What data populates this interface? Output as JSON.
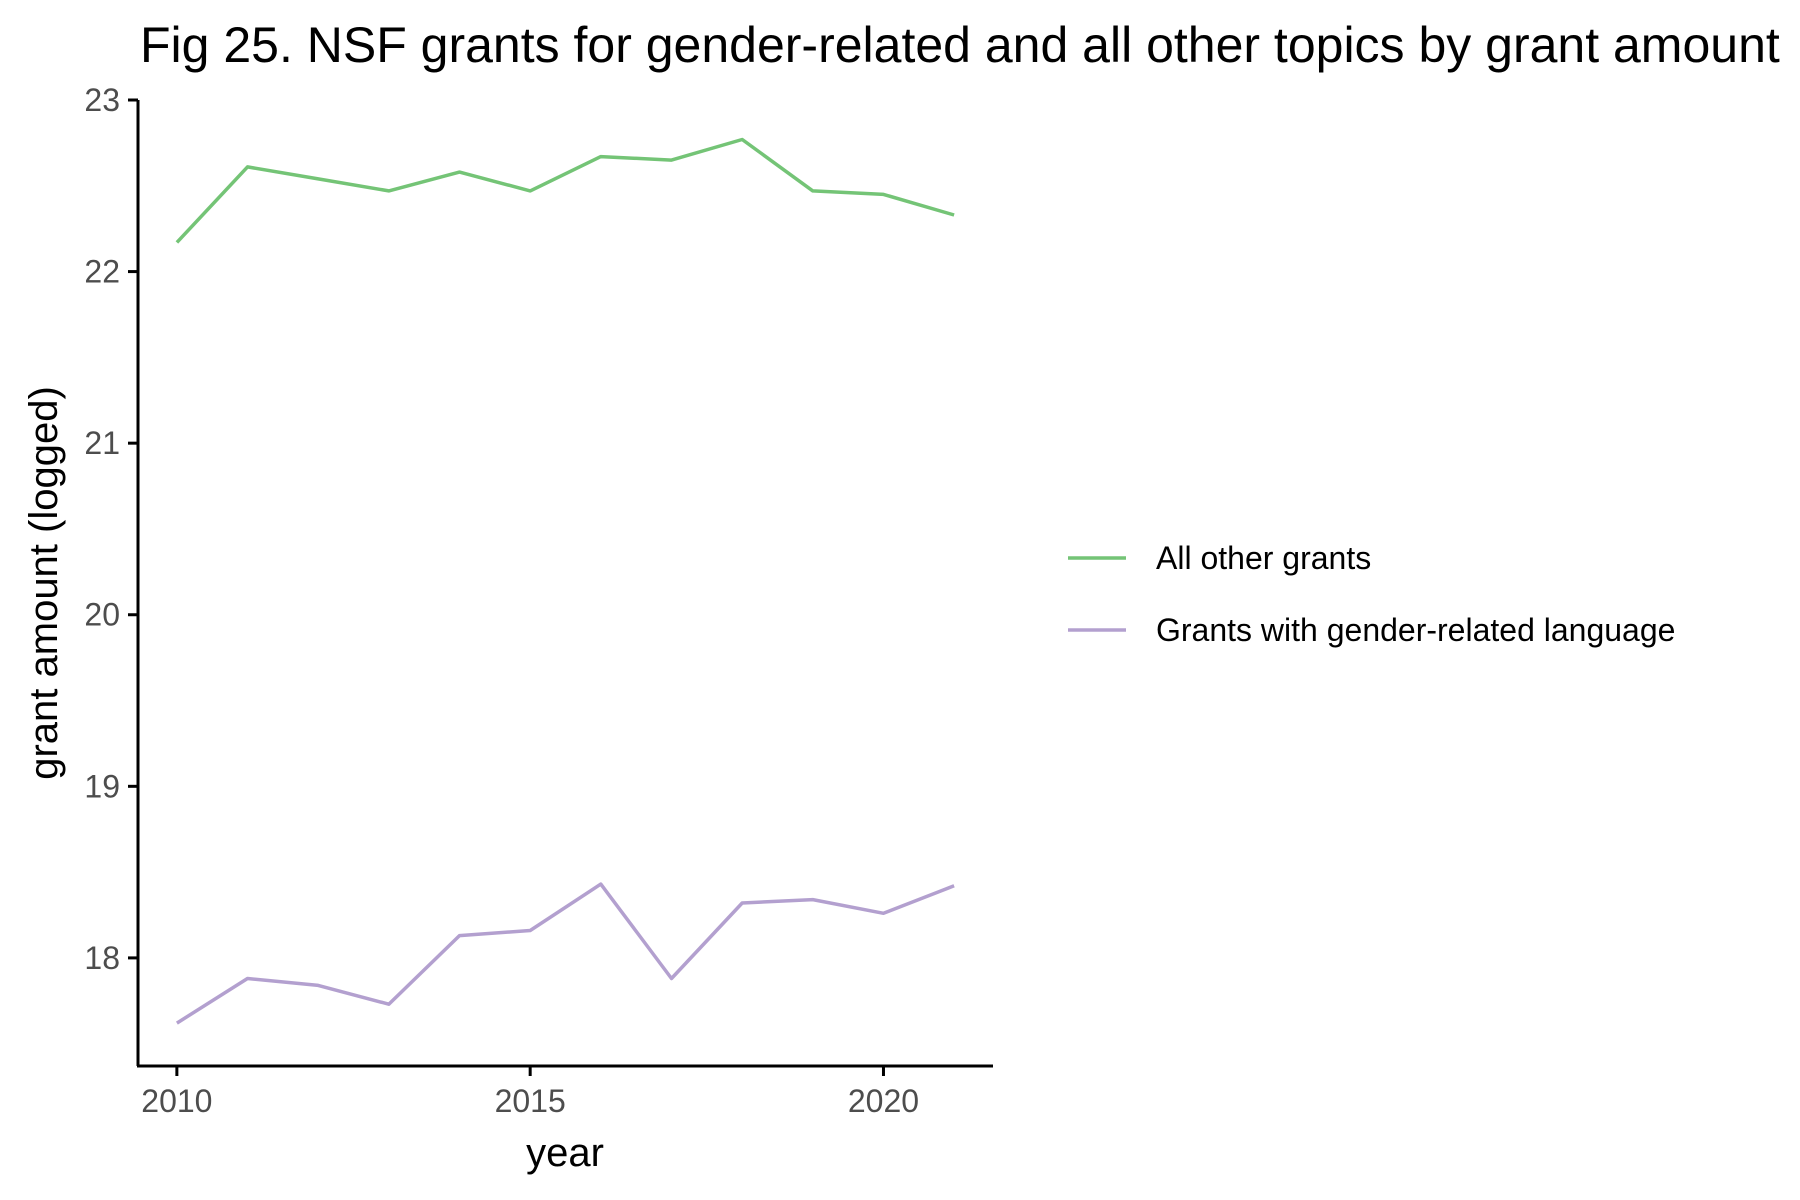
{
  "chart_data": {
    "type": "line",
    "title": "Fig 25. NSF grants for gender-related and all other topics by grant amount",
    "xlabel": "year",
    "ylabel": "grant amount (logged)",
    "x": [
      2010,
      2011,
      2012,
      2013,
      2014,
      2015,
      2016,
      2017,
      2018,
      2019,
      2020,
      2021
    ],
    "xlim": [
      2009.45,
      2021.55
    ],
    "ylim": [
      17.37,
      23.0
    ],
    "xticks": [
      2010,
      2015,
      2020
    ],
    "yticks": [
      18,
      19,
      20,
      21,
      22,
      23
    ],
    "grid": false,
    "legend_position": "right",
    "series": [
      {
        "name": "All other grants",
        "color": "#74c476",
        "values": [
          22.17,
          22.61,
          22.54,
          22.47,
          22.58,
          22.47,
          22.67,
          22.65,
          22.77,
          22.47,
          22.45,
          22.33
        ]
      },
      {
        "name": "Grants with gender-related language",
        "color": "#b3a0cf",
        "values": [
          17.62,
          17.88,
          17.84,
          17.73,
          18.13,
          18.16,
          18.43,
          17.88,
          18.32,
          18.34,
          18.26,
          18.42
        ]
      }
    ]
  }
}
